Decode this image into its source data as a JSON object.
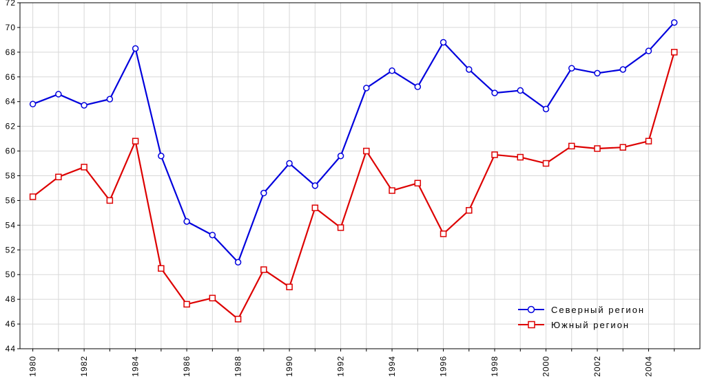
{
  "chart_data": {
    "type": "line",
    "x": [
      1980,
      1981,
      1982,
      1983,
      1984,
      1985,
      1986,
      1987,
      1988,
      1989,
      1990,
      1991,
      1992,
      1993,
      1994,
      1995,
      1996,
      1997,
      1998,
      1999,
      2000,
      2001,
      2002,
      2003,
      2004,
      2005
    ],
    "x_tick_labels": [
      "1980",
      "1982",
      "1984",
      "1986",
      "1988",
      "1990",
      "1992",
      "1994",
      "1996",
      "1998",
      "2000",
      "2002",
      "2004"
    ],
    "y_tick_labels": [
      "44",
      "46",
      "48",
      "50",
      "52",
      "54",
      "56",
      "58",
      "60",
      "62",
      "64",
      "66",
      "68",
      "70",
      "72"
    ],
    "ylim": [
      44,
      72
    ],
    "xlim": [
      1979.5,
      2006
    ],
    "grid": true,
    "legend_position": "bottom-right",
    "series": [
      {
        "name": "Северный регион",
        "color": "#0000dd",
        "marker": "circle",
        "values": [
          63.8,
          64.6,
          63.7,
          64.2,
          68.3,
          59.6,
          54.3,
          53.2,
          51.0,
          56.6,
          59.0,
          57.2,
          59.6,
          65.1,
          66.5,
          65.2,
          68.8,
          66.6,
          64.7,
          64.9,
          63.4,
          66.7,
          66.3,
          66.6,
          68.1,
          70.4
        ]
      },
      {
        "name": "Южный регион",
        "color": "#dd0000",
        "marker": "square",
        "values": [
          56.3,
          57.9,
          58.7,
          56.0,
          60.8,
          50.5,
          47.6,
          48.1,
          46.4,
          50.4,
          49.0,
          55.4,
          53.8,
          60.0,
          56.8,
          57.4,
          53.3,
          55.2,
          59.7,
          59.5,
          59.0,
          60.4,
          60.2,
          60.3,
          60.8,
          68.0
        ]
      }
    ]
  }
}
